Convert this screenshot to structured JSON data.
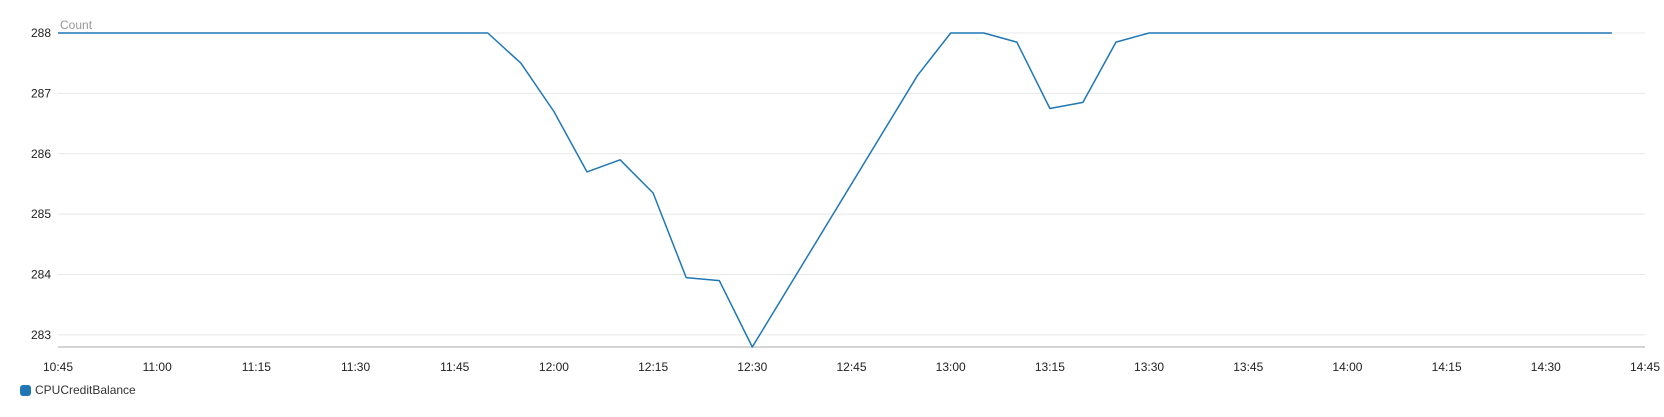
{
  "chart_data": {
    "type": "line",
    "unit_label": "Count",
    "x_ticks": [
      "10:45",
      "11:00",
      "11:15",
      "11:30",
      "11:45",
      "12:00",
      "12:15",
      "12:30",
      "12:45",
      "13:00",
      "13:15",
      "13:30",
      "13:45",
      "14:00",
      "14:15",
      "14:30",
      "14:45"
    ],
    "y_ticks": [
      283,
      284,
      285,
      286,
      287,
      288
    ],
    "xlim": [
      "10:45",
      "14:45"
    ],
    "ylim": [
      282.8,
      288
    ],
    "grid": "horizontal",
    "legend_position": "bottom-left",
    "series": [
      {
        "name": "CPUCreditBalance",
        "color": "#1f77b4",
        "points": [
          {
            "x": "10:45",
            "y": 288
          },
          {
            "x": "11:50",
            "y": 288
          },
          {
            "x": "11:55",
            "y": 287.5
          },
          {
            "x": "12:00",
            "y": 286.7
          },
          {
            "x": "12:05",
            "y": 285.7
          },
          {
            "x": "12:10",
            "y": 285.9
          },
          {
            "x": "12:15",
            "y": 285.35
          },
          {
            "x": "12:20",
            "y": 283.95
          },
          {
            "x": "12:25",
            "y": 283.9
          },
          {
            "x": "12:30",
            "y": 282.8
          },
          {
            "x": "12:55",
            "y": 287.3
          },
          {
            "x": "13:00",
            "y": 288
          },
          {
            "x": "13:05",
            "y": 288
          },
          {
            "x": "13:10",
            "y": 287.85
          },
          {
            "x": "13:15",
            "y": 286.75
          },
          {
            "x": "13:20",
            "y": 286.85
          },
          {
            "x": "13:25",
            "y": 287.85
          },
          {
            "x": "13:30",
            "y": 288
          },
          {
            "x": "14:40",
            "y": 288
          }
        ]
      }
    ]
  }
}
